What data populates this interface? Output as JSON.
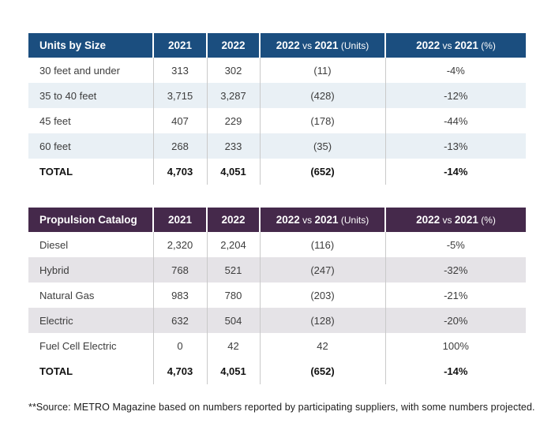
{
  "chart_data": [
    {
      "type": "table",
      "name": "units-by-size-table",
      "title": "Units by Size",
      "colors": {
        "header_bg": "#1b4e7f",
        "header_text": "#ffffff",
        "alt_row_bg": "#e9f0f5"
      },
      "columns": [
        {
          "label": "Units by Size"
        },
        {
          "label": "2021"
        },
        {
          "label": "2022"
        },
        {
          "label": "2022 vs 2021",
          "suffix": "(Units)"
        },
        {
          "label": "2022 vs 2021",
          "suffix": "(%)"
        }
      ],
      "rows": [
        {
          "cells": [
            "30 feet and under",
            "313",
            "302",
            "(11)",
            "-4%"
          ]
        },
        {
          "cells": [
            "35 to 40 feet",
            "3,715",
            "3,287",
            "(428)",
            "-12%"
          ]
        },
        {
          "cells": [
            "45 feet",
            "407",
            "229",
            "(178)",
            "-44%"
          ]
        },
        {
          "cells": [
            "60 feet",
            "268",
            "233",
            "(35)",
            "-13%"
          ]
        },
        {
          "cells": [
            "TOTAL",
            "4,703",
            "4,051",
            "(652)",
            "-14%"
          ],
          "total": true
        }
      ]
    },
    {
      "type": "table",
      "name": "propulsion-catalog-table",
      "title": "Propulsion Catalog",
      "colors": {
        "header_bg": "#45294b",
        "header_text": "#ffffff",
        "alt_row_bg": "#e5e3e7"
      },
      "columns": [
        {
          "label": "Propulsion Catalog"
        },
        {
          "label": "2021"
        },
        {
          "label": "2022"
        },
        {
          "label": "2022 vs 2021",
          "suffix": "(Units)"
        },
        {
          "label": "2022 vs 2021",
          "suffix": "(%)"
        }
      ],
      "rows": [
        {
          "cells": [
            "Diesel",
            "2,320",
            "2,204",
            "(116)",
            "-5%"
          ]
        },
        {
          "cells": [
            "Hybrid",
            "768",
            "521",
            "(247)",
            "-32%"
          ]
        },
        {
          "cells": [
            "Natural Gas",
            "983",
            "780",
            "(203)",
            "-21%"
          ]
        },
        {
          "cells": [
            "Electric",
            "632",
            "504",
            "(128)",
            "-20%"
          ]
        },
        {
          "cells": [
            "Fuel Cell Electric",
            "0",
            "42",
            "42",
            "100%"
          ]
        },
        {
          "cells": [
            "TOTAL",
            "4,703",
            "4,051",
            "(652)",
            "-14%"
          ],
          "total": true
        }
      ]
    }
  ],
  "footer": {
    "source_note": "**Source: METRO Magazine based on numbers reported by participating suppliers, with some numbers projected."
  }
}
